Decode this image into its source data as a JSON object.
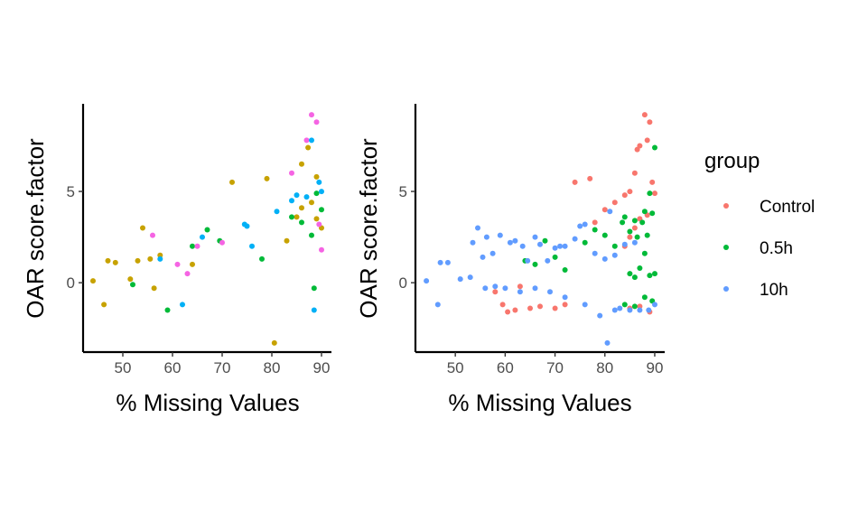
{
  "chart_data": [
    {
      "type": "scatter",
      "xlabel": "% Missing Values",
      "ylabel": "OAR score.factor",
      "xlim": [
        42,
        92
      ],
      "ylim": [
        -3.8,
        9.8
      ],
      "x_ticks": [
        50,
        60,
        70,
        80,
        90
      ],
      "y_ticks": [
        0,
        5
      ],
      "grid": false,
      "series": [
        {
          "color": "#C7A200",
          "points": [
            [
              44,
              0.1
            ],
            [
              46.2,
              -1.2
            ],
            [
              47,
              1.2
            ],
            [
              48.5,
              1.1
            ],
            [
              51.5,
              0.2
            ],
            [
              53,
              1.2
            ],
            [
              54,
              3.0
            ],
            [
              55.5,
              1.3
            ],
            [
              56.3,
              -0.3
            ],
            [
              57.5,
              1.5
            ],
            [
              64,
              1.0
            ],
            [
              72,
              5.5
            ],
            [
              79,
              5.7
            ],
            [
              86,
              6.5
            ],
            [
              87.3,
              7.4
            ],
            [
              89,
              5.8
            ],
            [
              83,
              2.3
            ],
            [
              85,
              3.6
            ],
            [
              86,
              4.1
            ],
            [
              88,
              4.4
            ],
            [
              89,
              3.5
            ],
            [
              90,
              3.0
            ],
            [
              80.5,
              -3.3
            ]
          ]
        },
        {
          "color": "#00BA38",
          "points": [
            [
              52,
              -0.1
            ],
            [
              59,
              -1.5
            ],
            [
              64,
              2.0
            ],
            [
              67,
              2.9
            ],
            [
              69.5,
              2.3
            ],
            [
              78,
              1.3
            ],
            [
              84,
              3.6
            ],
            [
              86,
              3.3
            ],
            [
              88,
              2.6
            ],
            [
              89,
              4.9
            ],
            [
              90,
              4.0
            ],
            [
              88.5,
              -0.3
            ]
          ]
        },
        {
          "color": "#F564E3",
          "points": [
            [
              56,
              2.6
            ],
            [
              61,
              1.0
            ],
            [
              63,
              0.5
            ],
            [
              65,
              2.0
            ],
            [
              70,
              2.2
            ],
            [
              88,
              9.2
            ],
            [
              89,
              8.8
            ],
            [
              87,
              7.8
            ],
            [
              84,
              6.0
            ],
            [
              89.5,
              3.2
            ],
            [
              90,
              1.8
            ]
          ]
        },
        {
          "color": "#00B0F6",
          "points": [
            [
              57.5,
              1.3
            ],
            [
              62,
              -1.2
            ],
            [
              66,
              2.5
            ],
            [
              74.5,
              3.2
            ],
            [
              75,
              3.1
            ],
            [
              76,
              2.0
            ],
            [
              81,
              3.9
            ],
            [
              84,
              4.5
            ],
            [
              85,
              4.8
            ],
            [
              87,
              4.7
            ],
            [
              88,
              7.8
            ],
            [
              89.5,
              5.5
            ],
            [
              90,
              5.0
            ],
            [
              88.5,
              -1.5
            ]
          ]
        }
      ]
    },
    {
      "type": "scatter",
      "xlabel": "% Missing Values",
      "ylabel": "OAR score.factor",
      "xlim": [
        42,
        92
      ],
      "ylim": [
        -3.8,
        9.8
      ],
      "x_ticks": [
        50,
        60,
        70,
        80,
        90
      ],
      "y_ticks": [
        0,
        5
      ],
      "grid": false,
      "series": [
        {
          "name": "Control",
          "color": "#F8766D",
          "points": [
            [
              58,
              -0.5
            ],
            [
              59.5,
              -1.2
            ],
            [
              60.5,
              -1.6
            ],
            [
              62,
              -1.5
            ],
            [
              63,
              -0.2
            ],
            [
              65,
              -1.4
            ],
            [
              67,
              -1.3
            ],
            [
              70,
              -1.4
            ],
            [
              72,
              -1.2
            ],
            [
              74,
              5.5
            ],
            [
              77,
              5.7
            ],
            [
              78,
              3.3
            ],
            [
              80,
              4.0
            ],
            [
              82,
              4.4
            ],
            [
              84,
              4.8
            ],
            [
              85,
              5.0
            ],
            [
              86,
              6.0
            ],
            [
              86.5,
              7.3
            ],
            [
              87,
              7.5
            ],
            [
              88,
              9.2
            ],
            [
              88.5,
              7.8
            ],
            [
              89,
              8.8
            ],
            [
              89.5,
              5.5
            ],
            [
              90,
              4.9
            ],
            [
              88.5,
              3.7
            ],
            [
              87,
              3.5
            ],
            [
              86,
              3.0
            ],
            [
              85,
              2.5
            ],
            [
              84,
              2.0
            ],
            [
              85,
              -1.4
            ],
            [
              87,
              -1.3
            ],
            [
              89,
              -1.6
            ]
          ]
        },
        {
          "name": "0.5h",
          "color": "#00BA38",
          "points": [
            [
              64,
              1.2
            ],
            [
              66,
              1.0
            ],
            [
              68,
              2.3
            ],
            [
              70,
              1.4
            ],
            [
              72,
              0.7
            ],
            [
              76,
              2.2
            ],
            [
              78,
              2.9
            ],
            [
              80,
              2.6
            ],
            [
              82,
              2.0
            ],
            [
              83.5,
              3.3
            ],
            [
              84,
              3.6
            ],
            [
              85,
              2.8
            ],
            [
              86,
              3.4
            ],
            [
              86.5,
              2.5
            ],
            [
              87.5,
              3.3
            ],
            [
              88,
              3.9
            ],
            [
              88.5,
              2.6
            ],
            [
              89,
              4.9
            ],
            [
              89.5,
              3.8
            ],
            [
              90,
              7.4
            ],
            [
              85,
              0.5
            ],
            [
              86,
              0.3
            ],
            [
              87,
              0.8
            ],
            [
              88,
              1.6
            ],
            [
              89,
              0.4
            ],
            [
              90,
              0.5
            ],
            [
              84,
              -1.2
            ],
            [
              86,
              -1.3
            ],
            [
              88,
              -0.8
            ],
            [
              89.5,
              -1.0
            ]
          ]
        },
        {
          "name": "10h",
          "color": "#619CFF",
          "points": [
            [
              44.2,
              0.1
            ],
            [
              46.5,
              -1.2
            ],
            [
              47,
              1.1
            ],
            [
              48.5,
              1.1
            ],
            [
              51,
              0.2
            ],
            [
              53,
              0.3
            ],
            [
              53.5,
              2.2
            ],
            [
              54.5,
              3.0
            ],
            [
              55.5,
              1.4
            ],
            [
              56.3,
              2.5
            ],
            [
              56,
              -0.3
            ],
            [
              57.5,
              1.6
            ],
            [
              59,
              2.6
            ],
            [
              61,
              2.2
            ],
            [
              62,
              2.3
            ],
            [
              63.5,
              2.0
            ],
            [
              64.5,
              1.2
            ],
            [
              66,
              2.5
            ],
            [
              67,
              2.1
            ],
            [
              68.5,
              1.2
            ],
            [
              70,
              1.9
            ],
            [
              71,
              2.0
            ],
            [
              72,
              2.0
            ],
            [
              74,
              2.4
            ],
            [
              75,
              3.1
            ],
            [
              76,
              3.2
            ],
            [
              78,
              1.6
            ],
            [
              80,
              1.3
            ],
            [
              81,
              3.9
            ],
            [
              82,
              1.5
            ],
            [
              84,
              2.1
            ],
            [
              86,
              2.2
            ],
            [
              80.5,
              -3.3
            ],
            [
              79,
              -1.8
            ],
            [
              82,
              -1.5
            ],
            [
              83,
              -1.4
            ],
            [
              85,
              -1.5
            ],
            [
              87,
              -1.5
            ],
            [
              88.8,
              -1.5
            ],
            [
              90,
              -1.2
            ],
            [
              76,
              -1.2
            ],
            [
              72,
              -0.8
            ],
            [
              69,
              -0.5
            ],
            [
              66,
              -0.3
            ],
            [
              63,
              -0.5
            ],
            [
              60,
              -0.3
            ],
            [
              58,
              -0.2
            ]
          ]
        }
      ]
    }
  ],
  "legend": {
    "title": "group",
    "items": [
      {
        "label": "Control",
        "color": "#F8766D"
      },
      {
        "label": "0.5h",
        "color": "#00BA38"
      },
      {
        "label": "10h",
        "color": "#619CFF"
      }
    ]
  }
}
